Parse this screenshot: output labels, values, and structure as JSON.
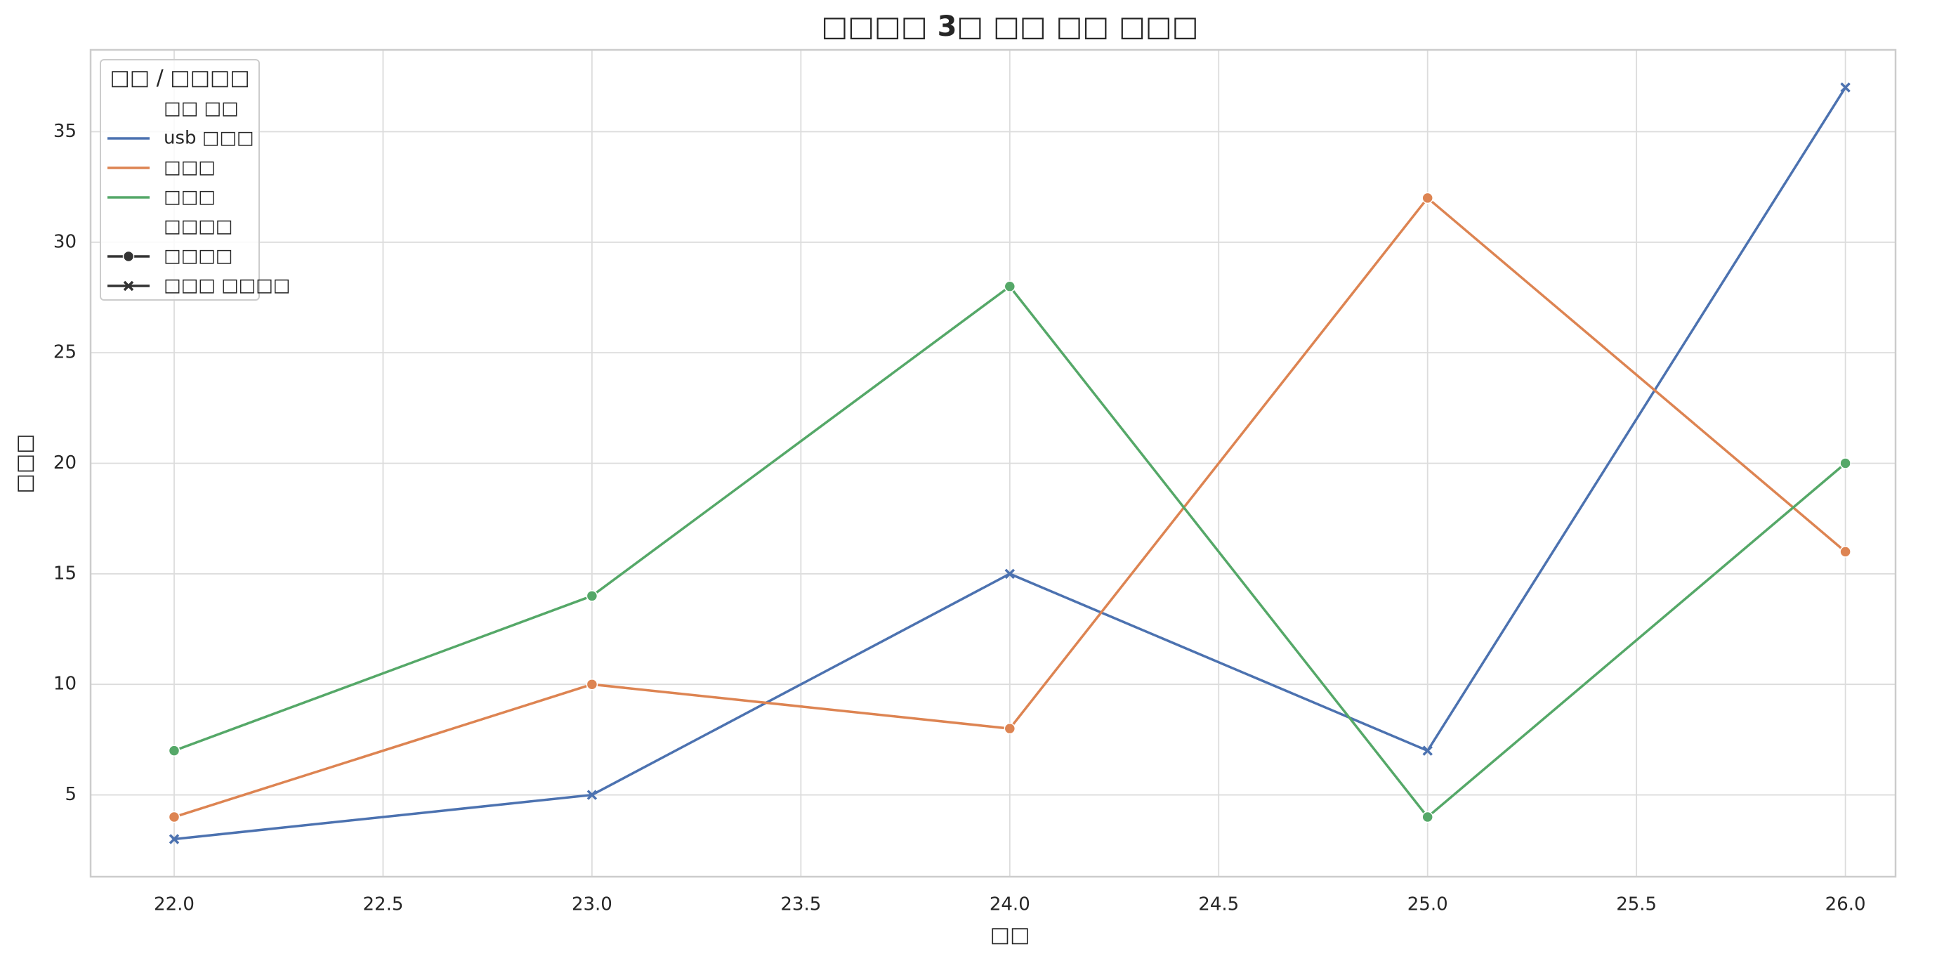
{
  "chart_data": {
    "type": "line",
    "title": "□□□□ 3□ □□ □□ □□□",
    "x_label": "□□",
    "y_label": "□□□",
    "x": [
      22,
      23,
      24,
      25,
      26
    ],
    "series": [
      {
        "name": "usb □□□",
        "color": "#4c72b0",
        "marker": "x",
        "values": [
          3,
          5,
          15,
          7,
          37
        ]
      },
      {
        "name": "□□□",
        "color": "#dd8452",
        "marker": "o",
        "values": [
          4,
          10,
          8,
          32,
          16
        ]
      },
      {
        "name": "□□□",
        "color": "#55a868",
        "marker": "o",
        "values": [
          7,
          14,
          28,
          4,
          20
        ]
      }
    ],
    "xlim": [
      21.8,
      26.12
    ],
    "xticks": [
      {
        "value": 22,
        "label": "22.0"
      },
      22.5,
      {
        "value": 23,
        "label": "23.0"
      },
      23.5,
      {
        "value": 24,
        "label": "24.0"
      },
      24.5,
      {
        "value": 25,
        "label": "25.0"
      },
      25.5,
      {
        "value": 26,
        "label": "26.0"
      }
    ],
    "ylim": [
      1.3,
      38.7
    ],
    "yticks": [
      5,
      10,
      15,
      20,
      25,
      30,
      35
    ],
    "grid": true,
    "legend": {
      "loc": "upper left",
      "title": "□□ / □□□□",
      "hue_title": "□□ □□",
      "style_title": "□□□□",
      "styles": [
        {
          "name": "□□□□",
          "marker": "o"
        },
        {
          "name": "□□□ □□□□",
          "marker": "x"
        }
      ]
    }
  }
}
